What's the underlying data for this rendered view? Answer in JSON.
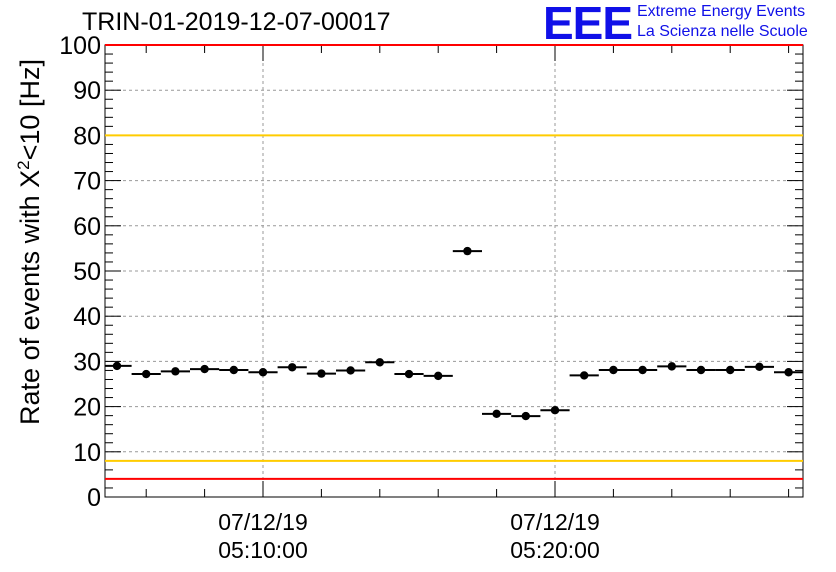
{
  "title": "TRIN-01-2019-12-07-00017",
  "logo": {
    "mark": "EEE",
    "line1": "Extreme Energy Events",
    "line2": "La Scienza nelle Scuole",
    "color": "#1010e8"
  },
  "chart_data": {
    "type": "scatter",
    "title": "TRIN-01-2019-12-07-00017",
    "ylabel_prefix": "Rate of events with X",
    "ylabel_sup": "2",
    "ylabel_suffix": "<10 [Hz]",
    "ylim": [
      0,
      100
    ],
    "yticks": [
      0,
      10,
      20,
      30,
      40,
      50,
      60,
      70,
      80,
      90,
      100
    ],
    "grid": true,
    "x_range_seconds": [
      0,
      1440
    ],
    "x_note": "seconds relative to 07/12/19 05:05:00, each point is a 60 s bin with horizontal error bar",
    "xticks": [
      {
        "t": 300,
        "date": "07/12/19",
        "time": "05:10:00"
      },
      {
        "t": 900,
        "date": "07/12/19",
        "time": "05:20:00"
      }
    ],
    "bin_width_seconds": 60,
    "points": [
      {
        "x": 0,
        "y": 29.0
      },
      {
        "x": 60,
        "y": 27.2
      },
      {
        "x": 120,
        "y": 27.8
      },
      {
        "x": 180,
        "y": 28.3
      },
      {
        "x": 240,
        "y": 28.1
      },
      {
        "x": 300,
        "y": 27.6
      },
      {
        "x": 360,
        "y": 28.7
      },
      {
        "x": 420,
        "y": 27.3
      },
      {
        "x": 480,
        "y": 28.0
      },
      {
        "x": 540,
        "y": 29.8
      },
      {
        "x": 600,
        "y": 27.2
      },
      {
        "x": 660,
        "y": 26.8
      },
      {
        "x": 720,
        "y": 54.4
      },
      {
        "x": 780,
        "y": 18.4
      },
      {
        "x": 840,
        "y": 17.9
      },
      {
        "x": 900,
        "y": 19.2
      },
      {
        "x": 960,
        "y": 26.9
      },
      {
        "x": 1020,
        "y": 28.1
      },
      {
        "x": 1080,
        "y": 28.1
      },
      {
        "x": 1140,
        "y": 28.9
      },
      {
        "x": 1200,
        "y": 28.1
      },
      {
        "x": 1260,
        "y": 28.1
      },
      {
        "x": 1320,
        "y": 28.8
      },
      {
        "x": 1380,
        "y": 27.6
      }
    ],
    "reference_lines": [
      {
        "y": 100,
        "color": "#ff0000"
      },
      {
        "y": 80,
        "color": "#ffcc00"
      },
      {
        "y": 8,
        "color": "#ffcc00"
      },
      {
        "y": 4,
        "color": "#ff0000"
      }
    ]
  }
}
